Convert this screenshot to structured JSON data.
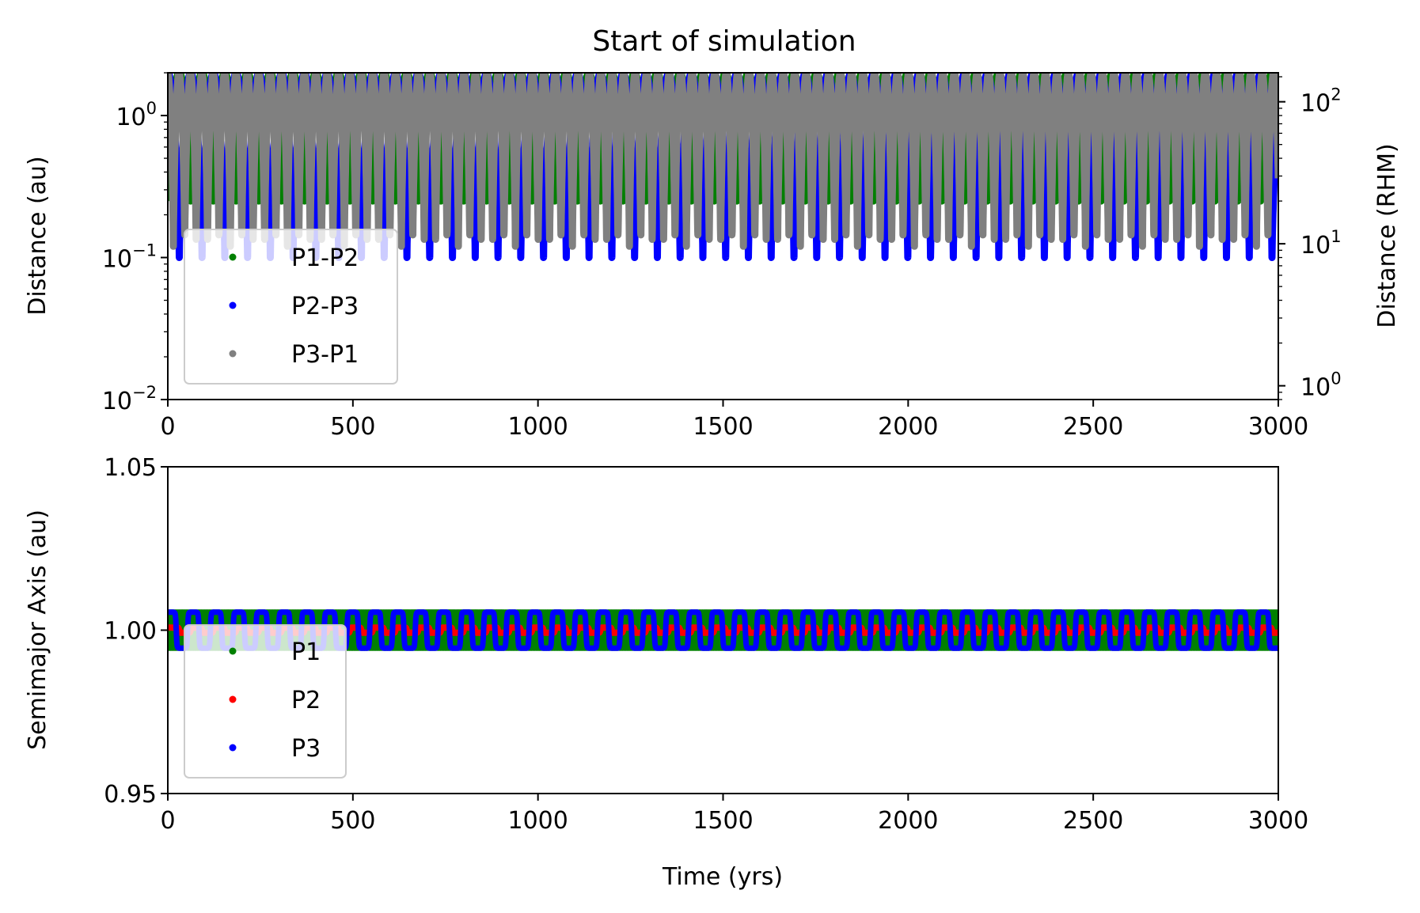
{
  "chart_data": [
    {
      "type": "scatter",
      "title": "Start of simulation",
      "xlabel": "",
      "ylabel": "Distance (au)",
      "y2label": "Distance (RHM)",
      "yscale": "log",
      "xlim": [
        0,
        3000
      ],
      "ylim": [
        0.01,
        2.0
      ],
      "y2lim": [
        0.8,
        160
      ],
      "xticks": [
        0,
        500,
        1000,
        1500,
        2000,
        2500,
        3000
      ],
      "xtick_labels": [
        "0",
        "500",
        "1000",
        "1500",
        "2000",
        "2500",
        "3000"
      ],
      "yticks": [
        0.01,
        0.1,
        1
      ],
      "ytick_base": "10",
      "ytick_exponents": [
        "−2",
        "−1",
        "0"
      ],
      "y2ticks": [
        1,
        10,
        100
      ],
      "y2tick_exponents": [
        "0",
        "1",
        "2"
      ],
      "legend_position": "lower-left",
      "series": [
        {
          "name": "P1-P2",
          "color": "#008000",
          "period_yrs": 61.5,
          "phase_yrs": 0,
          "min_au": 0.25,
          "max_au": 2.0
        },
        {
          "name": "P2-P3",
          "color": "#0000ff",
          "period_yrs": 61.5,
          "phase_yrs": 31,
          "min_au": 0.1,
          "max_au": 2.0
        },
        {
          "name": "P3-P1",
          "color": "#808080",
          "period_yrs": 30.8,
          "phase_yrs": 15,
          "min_au": 0.12,
          "max_au": 2.0
        }
      ]
    },
    {
      "type": "scatter",
      "title": "",
      "xlabel": "Time (yrs)",
      "ylabel": "Semimajor Axis (au)",
      "xlim": [
        0,
        3000
      ],
      "ylim": [
        0.95,
        1.05
      ],
      "xticks": [
        0,
        500,
        1000,
        1500,
        2000,
        2500,
        3000
      ],
      "xtick_labels": [
        "0",
        "500",
        "1000",
        "1500",
        "2000",
        "2500",
        "3000"
      ],
      "yticks": [
        0.95,
        1.0,
        1.05
      ],
      "ytick_labels": [
        "0.95",
        "1.00",
        "1.05"
      ],
      "legend_position": "lower-left",
      "series": [
        {
          "name": "P1",
          "color": "#008000",
          "center_au": 1.0,
          "amplitude_au": 0.0055,
          "period_yrs": 61.5
        },
        {
          "name": "P2",
          "color": "#ff0000",
          "center_au": 1.0,
          "amplitude_au": 0.0008,
          "period_yrs": 61.5
        },
        {
          "name": "P3",
          "color": "#0000ff",
          "center_au": 1.0,
          "amplitude_au": 0.0055,
          "period_yrs": 61.5
        }
      ]
    }
  ]
}
